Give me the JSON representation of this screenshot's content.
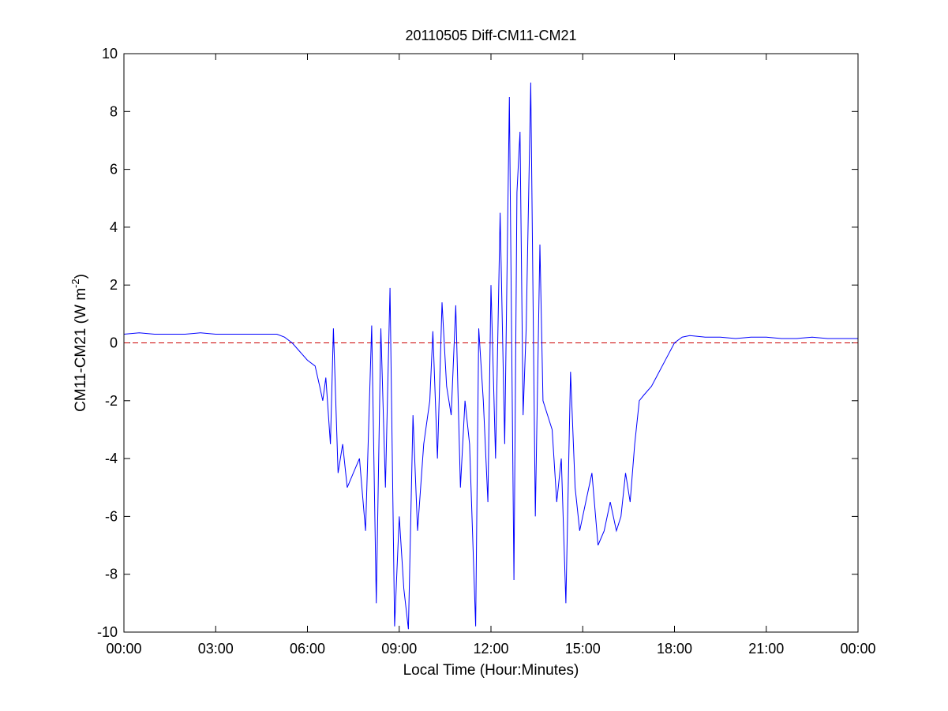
{
  "chart_data": {
    "type": "line",
    "title": "20110505 Diff-CM11-CM21",
    "xlabel": "Local Time (Hour:Minutes)",
    "ylabel": "CM11-CM21 (W m",
    "ylabel_sup": "-2",
    "ylabel_close": ")",
    "xlim": [
      0,
      24
    ],
    "ylim": [
      -10,
      10
    ],
    "x_ticks": [
      0,
      3,
      6,
      9,
      12,
      15,
      18,
      21,
      24
    ],
    "x_tick_labels": [
      "00:00",
      "03:00",
      "06:00",
      "09:00",
      "12:00",
      "15:00",
      "18:00",
      "21:00",
      "00:00"
    ],
    "y_ticks": [
      -10,
      -8,
      -6,
      -4,
      -2,
      0,
      2,
      4,
      6,
      8,
      10
    ],
    "y_tick_labels": [
      "-10",
      "-8",
      "-6",
      "-4",
      "-2",
      "0",
      "2",
      "4",
      "6",
      "8",
      "10"
    ],
    "grid": false,
    "line_color": "#0000ff",
    "reference_line": {
      "y": 0,
      "color": "#cc0000",
      "style": "dashed"
    },
    "series": [
      {
        "x": [
          0,
          0.5,
          1,
          1.5,
          2,
          2.5,
          3,
          3.5,
          4,
          4.5,
          5,
          5.25,
          5.5,
          5.75,
          6,
          6.25,
          6.4,
          6.5,
          6.6,
          6.75,
          6.85,
          7,
          7.15,
          7.3,
          7.5,
          7.7,
          7.9,
          8.1,
          8.25,
          8.4,
          8.55,
          8.7,
          8.85,
          9,
          9.15,
          9.3,
          9.45,
          9.6,
          9.8,
          10,
          10.1,
          10.25,
          10.4,
          10.55,
          10.7,
          10.85,
          11,
          11.15,
          11.3,
          11.5,
          11.6,
          11.75,
          11.9,
          12,
          12.15,
          12.3,
          12.45,
          12.6,
          12.75,
          12.85,
          12.95,
          13.05,
          13.15,
          13.3,
          13.45,
          13.6,
          13.7,
          13.85,
          14,
          14.15,
          14.3,
          14.45,
          14.6,
          14.75,
          14.9,
          15.1,
          15.3,
          15.5,
          15.7,
          15.9,
          16.1,
          16.25,
          16.4,
          16.55,
          16.7,
          16.85,
          17,
          17.25,
          17.5,
          17.75,
          18,
          18.25,
          18.5,
          19,
          19.5,
          20,
          20.5,
          21,
          21.5,
          22,
          22.5,
          23,
          23.5,
          24
        ],
        "y": [
          0.3,
          0.35,
          0.3,
          0.3,
          0.3,
          0.35,
          0.3,
          0.3,
          0.3,
          0.3,
          0.3,
          0.2,
          0,
          -0.3,
          -0.6,
          -0.8,
          -1.5,
          -2.0,
          -1.2,
          -3.5,
          0.5,
          -4.5,
          -3.5,
          -5.0,
          -4.5,
          -4.0,
          -6.5,
          0.6,
          -9.0,
          0.5,
          -5.0,
          1.9,
          -9.8,
          -6.0,
          -8.5,
          -9.9,
          -2.5,
          -6.5,
          -3.5,
          -2.0,
          0.4,
          -4.0,
          1.4,
          -1.5,
          -2.5,
          1.3,
          -5.0,
          -2.0,
          -3.5,
          -9.8,
          0.5,
          -2.0,
          -5.5,
          2.0,
          -4.0,
          4.5,
          -3.5,
          8.5,
          -8.2,
          5.2,
          7.3,
          -2.5,
          0.5,
          9.0,
          -6.0,
          3.4,
          -2.0,
          -2.5,
          -3.0,
          -5.5,
          -4.0,
          -9.0,
          -1.0,
          -5.0,
          -6.5,
          -5.5,
          -4.5,
          -7.0,
          -6.5,
          -5.5,
          -6.5,
          -6.0,
          -4.5,
          -5.5,
          -3.5,
          -2.0,
          -1.8,
          -1.5,
          -1.0,
          -0.5,
          0,
          0.2,
          0.25,
          0.2,
          0.2,
          0.15,
          0.2,
          0.2,
          0.15,
          0.15,
          0.2,
          0.15,
          0.15,
          0.15
        ]
      }
    ]
  }
}
